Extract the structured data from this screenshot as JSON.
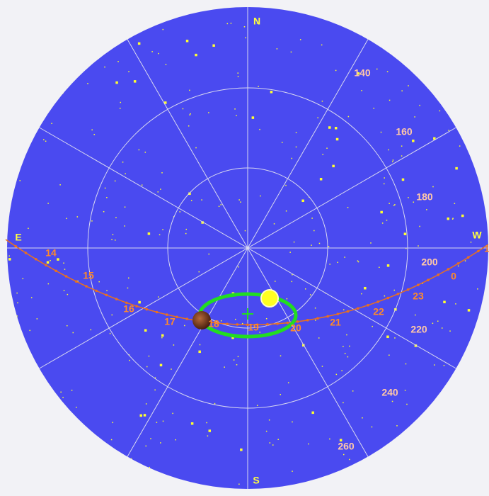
{
  "directions": {
    "north": "N",
    "south": "S",
    "east": "E",
    "west": "W"
  },
  "hour_labels": [
    "14",
    "15",
    "16",
    "17",
    "18",
    "19",
    "20",
    "21",
    "22",
    "23",
    "0",
    "1"
  ],
  "azimuth_labels": [
    "140",
    "160",
    "180",
    "200",
    "220",
    "240",
    "260"
  ]
}
